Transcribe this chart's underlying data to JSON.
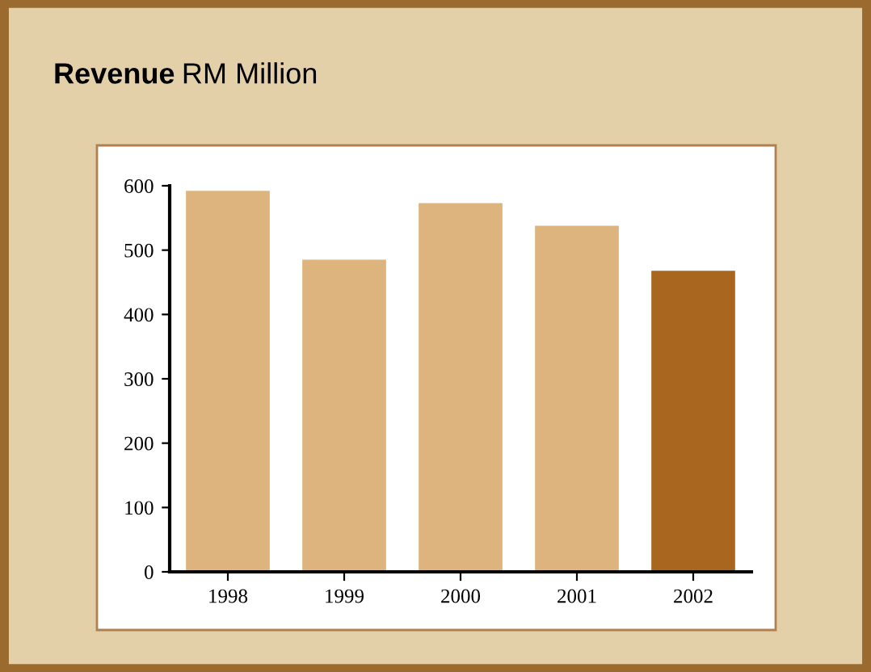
{
  "chart_data": {
    "type": "bar",
    "title": "Revenue",
    "subtitle": "RM Million",
    "categories": [
      "1998",
      "1999",
      "2000",
      "2001",
      "2002"
    ],
    "values": [
      592,
      485,
      573,
      538,
      468
    ],
    "colors": [
      "#deb47e",
      "#deb47e",
      "#deb47e",
      "#deb47e",
      "#a8661f"
    ],
    "ylim": [
      0,
      600
    ],
    "yticks": [
      0,
      100,
      200,
      300,
      400,
      500,
      600
    ],
    "grid": false,
    "legend": false
  }
}
